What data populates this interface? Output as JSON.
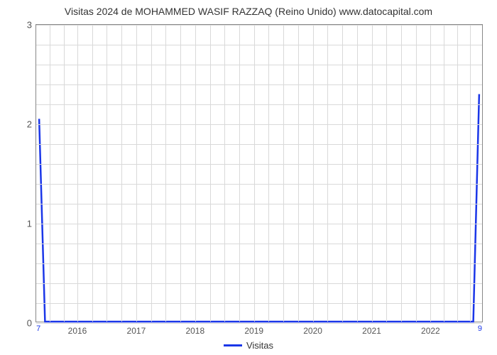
{
  "chart": {
    "type": "line",
    "title": "Visitas 2024 de MOHAMMED WASIF RAZZAQ (Reino Unido) www.datocapital.com",
    "title_fontsize": 14,
    "title_color": "#333333",
    "background_color": "#ffffff",
    "plot_border_color": "#888888",
    "grid_color": "#d9d9d9",
    "x_axis": {
      "ticks": [
        2016,
        2017,
        2018,
        2019,
        2020,
        2021,
        2022
      ],
      "range_min": 2015.3,
      "range_max": 2022.9,
      "label_color": "#555555",
      "label_fontsize": 12
    },
    "y_axis": {
      "ticks": [
        0,
        1,
        2,
        3
      ],
      "range_min": 0,
      "range_max": 3,
      "label_color": "#555555",
      "label_fontsize": 13
    },
    "minor_grid": {
      "y_subdivisions": 5,
      "x_subdivisions": 4
    },
    "series": [
      {
        "name": "Visitas",
        "color": "#1a36e8",
        "line_width": 2.5,
        "points": [
          {
            "x": 2015.35,
            "y": 2.05
          },
          {
            "x": 2015.45,
            "y": 0.0
          },
          {
            "x": 2022.75,
            "y": 0.0
          },
          {
            "x": 2022.85,
            "y": 2.3
          }
        ],
        "start_label": "7",
        "end_label": "9"
      }
    ],
    "legend": {
      "position": "bottom",
      "items": [
        {
          "label": "Visitas",
          "color": "#1a36e8"
        }
      ]
    }
  }
}
